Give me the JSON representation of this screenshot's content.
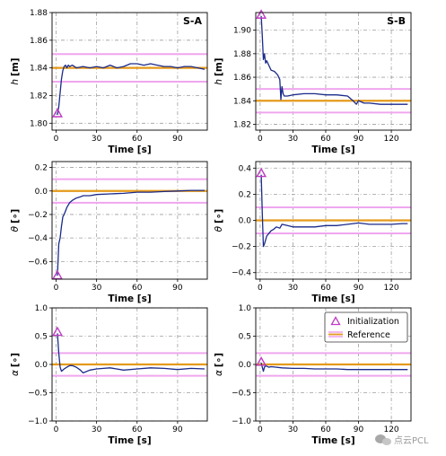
{
  "colors": {
    "trajectory": "#1a2a8a",
    "reference_dark": "#e59a1a",
    "reference_light": "#f0a6ef",
    "initialization": "#c03cc4",
    "grid": "#9e9e9e",
    "axes": "#000000"
  },
  "legend": {
    "items": [
      {
        "label": "Initialization",
        "icon": "triangle-marker"
      },
      {
        "label": "Reference",
        "icon": "reference-lines"
      }
    ],
    "placement": "top-right of bottom-right panel"
  },
  "watermark": {
    "text": "点云PCL",
    "icon": "wechat-icon"
  },
  "chart_data": [
    {
      "id": "h_SA",
      "type": "line",
      "panel_label": "S-A",
      "xlabel": "Time [s]",
      "ylabel_symbol": "h",
      "ylabel_unit": "[m]",
      "xlim": [
        -3,
        112
      ],
      "ylim": [
        1.795,
        1.88
      ],
      "xticks": [
        0,
        30,
        60,
        90
      ],
      "yticks": [
        1.8,
        1.82,
        1.84,
        1.86,
        1.88
      ],
      "ytick_labels": [
        "1.80",
        "1.82",
        "1.84",
        "1.86",
        "1.88"
      ],
      "grid": true,
      "reference": {
        "value": 1.84,
        "upper": 1.85,
        "lower": 1.83
      },
      "initialization": {
        "x": 1,
        "y": 1.807
      },
      "series": [
        {
          "x": [
            1,
            2,
            3,
            4,
            5,
            6,
            7,
            8,
            9,
            10,
            12,
            15,
            20,
            25,
            30,
            35,
            40,
            45,
            50,
            55,
            60,
            65,
            70,
            75,
            80,
            85,
            90,
            95,
            100,
            105,
            110
          ],
          "y": [
            1.806,
            1.812,
            1.822,
            1.832,
            1.838,
            1.841,
            1.842,
            1.84,
            1.842,
            1.841,
            1.842,
            1.84,
            1.841,
            1.84,
            1.841,
            1.84,
            1.842,
            1.84,
            1.841,
            1.843,
            1.843,
            1.842,
            1.843,
            1.842,
            1.841,
            1.841,
            1.84,
            1.841,
            1.841,
            1.84,
            1.839
          ]
        }
      ]
    },
    {
      "id": "h_SB",
      "type": "line",
      "panel_label": "S-B",
      "xlabel": "Time [s]",
      "ylabel_symbol": "h",
      "ylabel_unit": "[m]",
      "xlim": [
        -4,
        138
      ],
      "ylim": [
        1.815,
        1.915
      ],
      "xticks": [
        0,
        30,
        60,
        90,
        120
      ],
      "yticks": [
        1.82,
        1.84,
        1.86,
        1.88,
        1.9
      ],
      "ytick_labels": [
        "1.82",
        "1.84",
        "1.86",
        "1.88",
        "1.90"
      ],
      "grid": true,
      "reference": {
        "value": 1.84,
        "upper": 1.85,
        "lower": 1.83
      },
      "initialization": {
        "x": 1,
        "y": 1.913
      },
      "series": [
        {
          "x": [
            1,
            2,
            3,
            4,
            5,
            6,
            8,
            10,
            13,
            16,
            18,
            19,
            20,
            21,
            22,
            25,
            30,
            40,
            50,
            60,
            70,
            80,
            85,
            88,
            90,
            95,
            100,
            110,
            120,
            130,
            135
          ],
          "y": [
            1.912,
            1.895,
            1.875,
            1.88,
            1.872,
            1.874,
            1.87,
            1.866,
            1.865,
            1.862,
            1.858,
            1.841,
            1.852,
            1.846,
            1.844,
            1.844,
            1.845,
            1.846,
            1.846,
            1.845,
            1.845,
            1.844,
            1.84,
            1.837,
            1.84,
            1.838,
            1.838,
            1.837,
            1.837,
            1.837,
            1.837
          ]
        }
      ]
    },
    {
      "id": "theta_SA",
      "type": "line",
      "xlabel": "Time [s]",
      "ylabel_symbol": "θ",
      "ylabel_unit": "[∘]",
      "xlim": [
        -3,
        112
      ],
      "ylim": [
        -0.75,
        0.25
      ],
      "xticks": [
        0,
        30,
        60,
        90
      ],
      "yticks": [
        -0.6,
        -0.4,
        -0.2,
        0.0,
        0.2
      ],
      "ytick_labels": [
        "−0.6",
        "−0.4",
        "−0.2",
        "0.0",
        "0.2"
      ],
      "grid": true,
      "reference": {
        "value": 0.0,
        "upper": 0.1,
        "lower": -0.1
      },
      "initialization": {
        "x": 1,
        "y": -0.72
      },
      "series": [
        {
          "x": [
            1,
            2,
            3,
            4,
            5,
            6,
            7,
            8,
            10,
            12,
            15,
            18,
            20,
            25,
            30,
            40,
            50,
            60,
            70,
            80,
            90,
            100,
            110
          ],
          "y": [
            -0.72,
            -0.45,
            -0.4,
            -0.3,
            -0.22,
            -0.2,
            -0.17,
            -0.14,
            -0.1,
            -0.08,
            -0.06,
            -0.05,
            -0.04,
            -0.04,
            -0.03,
            -0.025,
            -0.02,
            -0.01,
            -0.01,
            -0.005,
            0.0,
            0.005,
            0.005
          ]
        }
      ]
    },
    {
      "id": "theta_SB",
      "type": "line",
      "xlabel": "Time [s]",
      "ylabel_symbol": "θ",
      "ylabel_unit": "[∘]",
      "xlim": [
        -4,
        138
      ],
      "ylim": [
        -0.45,
        0.45
      ],
      "xticks": [
        0,
        30,
        60,
        90,
        120
      ],
      "yticks": [
        -0.4,
        -0.2,
        0.0,
        0.2,
        0.4
      ],
      "ytick_labels": [
        "−0.4",
        "−0.2",
        "0.0",
        "0.2",
        "0.4"
      ],
      "grid": true,
      "reference": {
        "value": 0.0,
        "upper": 0.1,
        "lower": -0.1
      },
      "initialization": {
        "x": 1,
        "y": 0.36
      },
      "series": [
        {
          "x": [
            1,
            2,
            3,
            4,
            5,
            6,
            8,
            10,
            12,
            15,
            18,
            20,
            25,
            30,
            40,
            50,
            60,
            70,
            80,
            90,
            100,
            110,
            120,
            130,
            135
          ],
          "y": [
            0.35,
            0.05,
            -0.2,
            -0.18,
            -0.15,
            -0.12,
            -0.1,
            -0.08,
            -0.07,
            -0.05,
            -0.06,
            -0.03,
            -0.04,
            -0.05,
            -0.05,
            -0.05,
            -0.04,
            -0.04,
            -0.03,
            -0.02,
            -0.03,
            -0.03,
            -0.03,
            -0.025,
            -0.025
          ]
        }
      ]
    },
    {
      "id": "alpha_SA",
      "type": "line",
      "xlabel": "Time [s]",
      "ylabel_symbol": "α",
      "ylabel_unit": "[∘]",
      "xlim": [
        -3,
        112
      ],
      "ylim": [
        -1.0,
        1.0
      ],
      "xticks": [
        0,
        30,
        60,
        90
      ],
      "yticks": [
        -1.0,
        -0.5,
        0.0,
        0.5,
        1.0
      ],
      "ytick_labels": [
        "−1.0",
        "−0.5",
        "0.0",
        "0.5",
        "1.0"
      ],
      "grid": true,
      "reference": {
        "value": 0.0,
        "upper": 0.2,
        "lower": -0.2
      },
      "initialization": {
        "x": 1,
        "y": 0.57
      },
      "series": [
        {
          "x": [
            1,
            2,
            3,
            4,
            6,
            8,
            10,
            12,
            15,
            18,
            20,
            25,
            30,
            35,
            40,
            50,
            60,
            70,
            80,
            90,
            100,
            110
          ],
          "y": [
            0.55,
            0.2,
            -0.05,
            -0.12,
            -0.08,
            -0.05,
            -0.02,
            -0.02,
            -0.05,
            -0.1,
            -0.15,
            -0.1,
            -0.08,
            -0.07,
            -0.06,
            -0.1,
            -0.08,
            -0.06,
            -0.07,
            -0.09,
            -0.07,
            -0.08
          ]
        }
      ]
    },
    {
      "id": "alpha_SB",
      "type": "line",
      "xlabel": "Time [s]",
      "ylabel_symbol": "α",
      "ylabel_unit": "[∘]",
      "xlim": [
        -4,
        138
      ],
      "ylim": [
        -1.0,
        1.0
      ],
      "xticks": [
        0,
        30,
        60,
        90,
        120
      ],
      "yticks": [
        -1.0,
        -0.5,
        0.0,
        0.5,
        1.0
      ],
      "ytick_labels": [
        "−1.0",
        "−0.5",
        "0.0",
        "0.5",
        "1.0"
      ],
      "grid": true,
      "reference": {
        "value": 0.0,
        "upper": 0.2,
        "lower": -0.2
      },
      "initialization": {
        "x": 1,
        "y": 0.04
      },
      "series": [
        {
          "x": [
            1,
            2,
            3,
            4,
            5,
            6,
            8,
            10,
            15,
            20,
            30,
            40,
            50,
            60,
            70,
            80,
            90,
            100,
            110,
            120,
            130,
            135
          ],
          "y": [
            0.03,
            -0.05,
            -0.12,
            -0.05,
            -0.02,
            -0.03,
            -0.05,
            -0.04,
            -0.05,
            -0.06,
            -0.07,
            -0.07,
            -0.08,
            -0.08,
            -0.08,
            -0.09,
            -0.09,
            -0.09,
            -0.09,
            -0.09,
            -0.09,
            -0.09
          ]
        }
      ]
    }
  ]
}
